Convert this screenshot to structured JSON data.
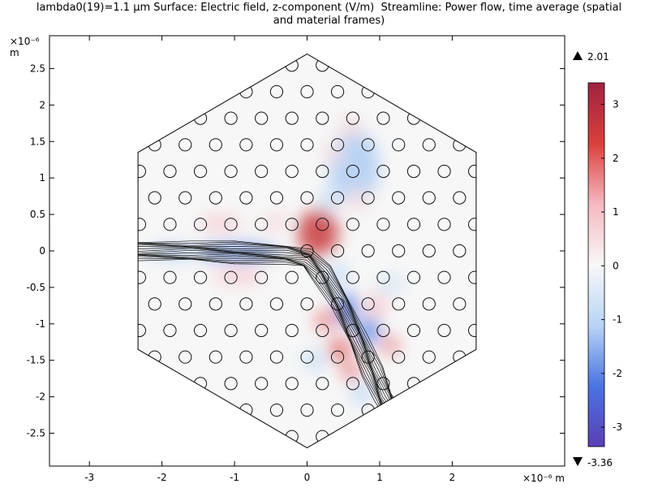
{
  "chart_data": {
    "type": "heatmap",
    "title": "lambda0(19)=1.1 µm Surface: Electric field, z-component (V/m)  Streamline: Power flow, time average (spatial",
    "title_line2": "and material frames)",
    "y_unit_label": "×10⁻⁶",
    "y_unit_label_2": "m",
    "x_unit_label": "×10⁻⁶ m",
    "xlim": [
      -3.55,
      3.55
    ],
    "ylim": [
      -2.95,
      2.95
    ],
    "x_ticks": [
      -3,
      -2,
      -1,
      0,
      1,
      2
    ],
    "y_ticks": [
      2.5,
      2,
      1.5,
      1,
      0.5,
      0,
      -0.5,
      -1,
      -1.5,
      -2,
      -2.5
    ],
    "x_tick_labels": [
      "-3",
      "-2",
      "-1",
      "0",
      "1",
      "2"
    ],
    "y_tick_labels": [
      "2.5",
      "2",
      "1.5",
      "1",
      "0.5",
      "0",
      "-0.5",
      "-1",
      "-1.5",
      "-2",
      "-2.5"
    ],
    "domain": "hexagon",
    "hexagon_vertices": [
      [
        0,
        2.7
      ],
      [
        2.33,
        1.35
      ],
      [
        2.33,
        -1.35
      ],
      [
        0,
        -2.7
      ],
      [
        -2.33,
        -1.35
      ],
      [
        -2.33,
        1.35
      ]
    ],
    "lattice_constant": 0.42,
    "hole_radius": 0.085,
    "colorbar": {
      "max_marker": "2.01",
      "min_marker": "-3.36",
      "range": [
        -3.36,
        3.4
      ],
      "ticks": [
        3,
        2,
        1,
        0,
        -1,
        -2,
        -3
      ],
      "tick_labels": [
        "3",
        "2",
        "1",
        "0",
        "-1",
        "-2",
        "-3"
      ],
      "colors": [
        "#5a3fb5",
        "#4a74e0",
        "#b8d4f5",
        "#f8f8f8",
        "#f5b8c0",
        "#d9403c",
        "#9e2340"
      ]
    },
    "field_blobs": [
      {
        "x": 0.15,
        "y": 0.25,
        "sx": 0.28,
        "sy": 0.32,
        "amp": 2.6
      },
      {
        "x": 0.65,
        "y": 1.15,
        "sx": 0.35,
        "sy": 0.5,
        "amp": -1.2
      },
      {
        "x": -0.95,
        "y": -0.02,
        "sx": 0.55,
        "sy": 0.12,
        "amp": -1.7
      },
      {
        "x": -1.85,
        "y": -0.02,
        "sx": 0.35,
        "sy": 0.1,
        "amp": -1.1
      },
      {
        "x": -1.2,
        "y": 0.38,
        "sx": 0.3,
        "sy": 0.1,
        "amp": 0.9
      },
      {
        "x": -0.95,
        "y": -0.35,
        "sx": 0.35,
        "sy": 0.1,
        "amp": 0.9
      },
      {
        "x": -0.45,
        "y": 0.4,
        "sx": 0.2,
        "sy": 0.12,
        "amp": 0.6
      },
      {
        "x": 0.4,
        "y": -0.35,
        "sx": 0.2,
        "sy": 0.2,
        "amp": -0.7
      },
      {
        "x": 0.55,
        "y": -0.8,
        "sx": 0.14,
        "sy": 0.22,
        "amp": -2.2
      },
      {
        "x": 0.25,
        "y": -0.95,
        "sx": 0.15,
        "sy": 0.15,
        "amp": 1.6
      },
      {
        "x": 0.45,
        "y": -1.35,
        "sx": 0.15,
        "sy": 0.15,
        "amp": 2.0
      },
      {
        "x": 0.85,
        "y": -1.1,
        "sx": 0.15,
        "sy": 0.2,
        "amp": -2.0
      },
      {
        "x": 1.15,
        "y": -1.3,
        "sx": 0.13,
        "sy": 0.13,
        "amp": 1.6
      },
      {
        "x": 0.95,
        "y": -0.75,
        "sx": 0.16,
        "sy": 0.16,
        "amp": 0.9
      },
      {
        "x": 0.6,
        "y": -1.65,
        "sx": 0.13,
        "sy": 0.13,
        "amp": 1.7
      },
      {
        "x": 0.75,
        "y": -1.95,
        "sx": 0.15,
        "sy": 0.15,
        "amp": -1.0
      },
      {
        "x": 0.1,
        "y": -1.5,
        "sx": 0.15,
        "sy": 0.15,
        "amp": -0.9
      },
      {
        "x": 1.15,
        "y": -0.45,
        "sx": 0.18,
        "sy": 0.15,
        "amp": -0.6
      },
      {
        "x": 0.7,
        "y": 0.7,
        "sx": 0.18,
        "sy": 0.15,
        "amp": 0.5
      },
      {
        "x": 0.35,
        "y": 1.35,
        "sx": 0.15,
        "sy": 0.15,
        "amp": 0.5
      },
      {
        "x": 0.6,
        "y": 1.7,
        "sx": 0.15,
        "sy": 0.15,
        "amp": 0.6
      },
      {
        "x": 0.3,
        "y": 0.7,
        "sx": 0.15,
        "sy": 0.15,
        "amp": -0.8
      }
    ],
    "streamlines": {
      "count": 16,
      "path": [
        [
          -2.33,
          0.0
        ],
        [
          -1.6,
          0.0
        ],
        [
          -1.0,
          -0.02
        ],
        [
          -0.3,
          -0.05
        ],
        [
          0.0,
          -0.1
        ],
        [
          0.2,
          -0.3
        ],
        [
          0.45,
          -0.7
        ],
        [
          0.7,
          -1.2
        ],
        [
          0.9,
          -1.65
        ],
        [
          1.05,
          -2.0
        ],
        [
          1.15,
          -2.2
        ]
      ]
    }
  }
}
